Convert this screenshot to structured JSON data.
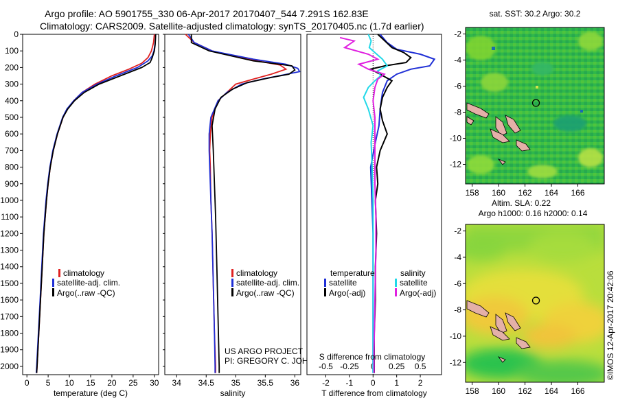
{
  "title_line1": "Argo profile: AO 5901755_330 06-Apr-2017 20170407_544 7.291S 162.83E",
  "title_line2": "Climatology: CARS2009. Satellite-adjusted climatology: synTS_20170405.nc (1.7d earlier)",
  "footer": {
    "project": "US ARGO PROJECT",
    "pi": "PI: GREGORY C. JOHNSON",
    "stamp": "©IMOS 12-Apr-2017 20:42:06"
  },
  "colors": {
    "climatology": "#e02020",
    "satellite": "#1f2fd6",
    "argo": "#000000",
    "satellite_diff": "#20d8e8",
    "argo_diff": "#e020e0"
  },
  "chart_data": [
    {
      "type": "line",
      "id": "temperature",
      "xlabel": "temperature (deg C)",
      "ylabel": "",
      "xlim": [
        -1,
        31
      ],
      "ylim": [
        2050,
        0
      ],
      "xticks": [
        0,
        5,
        10,
        15,
        20,
        25,
        30
      ],
      "yticks": [
        0,
        100,
        200,
        300,
        400,
        500,
        600,
        700,
        800,
        900,
        1000,
        1100,
        1200,
        1300,
        1400,
        1500,
        1600,
        1700,
        1800,
        1900,
        2000
      ],
      "legend": [
        "climatology",
        "satellite-adj. clim.",
        "Argo(..raw -QC)"
      ],
      "legend_position": "lower-center",
      "series": [
        {
          "name": "climatology",
          "color": "climatology",
          "points": [
            [
              30,
              0
            ],
            [
              29.8,
              50
            ],
            [
              29.3,
              100
            ],
            [
              28.5,
              140
            ],
            [
              27,
              175
            ],
            [
              24,
              210
            ],
            [
              20,
              250
            ],
            [
              16,
              300
            ],
            [
              13,
              350
            ],
            [
              11,
              400
            ],
            [
              9.5,
              450
            ],
            [
              8.5,
              500
            ],
            [
              7.2,
              600
            ],
            [
              6.2,
              700
            ],
            [
              5.5,
              800
            ],
            [
              5,
              900
            ],
            [
              4.6,
              1000
            ],
            [
              4,
              1200
            ],
            [
              3.6,
              1400
            ],
            [
              3.2,
              1600
            ],
            [
              2.8,
              1800
            ],
            [
              2.4,
              2000
            ],
            [
              2.3,
              2040
            ]
          ]
        },
        {
          "name": "satellite-adj. clim.",
          "color": "satellite",
          "points": [
            [
              30.3,
              0
            ],
            [
              30.2,
              50
            ],
            [
              29.9,
              100
            ],
            [
              29.5,
              130
            ],
            [
              28.5,
              160
            ],
            [
              26,
              200
            ],
            [
              21,
              250
            ],
            [
              16.5,
              300
            ],
            [
              13,
              350
            ],
            [
              11,
              400
            ],
            [
              9.4,
              450
            ],
            [
              8.4,
              500
            ],
            [
              7.1,
              600
            ],
            [
              6.1,
              700
            ],
            [
              5.4,
              800
            ],
            [
              4.9,
              900
            ],
            [
              4.5,
              1000
            ],
            [
              3.9,
              1200
            ],
            [
              3.5,
              1400
            ],
            [
              3.1,
              1600
            ],
            [
              2.7,
              1800
            ],
            [
              2.3,
              2000
            ],
            [
              2.2,
              2040
            ]
          ]
        },
        {
          "name": "Argo(..raw -QC)",
          "color": "argo",
          "points": [
            [
              30.3,
              0
            ],
            [
              30.2,
              60
            ],
            [
              30,
              100
            ],
            [
              29.5,
              140
            ],
            [
              29,
              170
            ],
            [
              27,
              200
            ],
            [
              22,
              250
            ],
            [
              17,
              300
            ],
            [
              13.5,
              350
            ],
            [
              11.2,
              400
            ],
            [
              9.6,
              450
            ],
            [
              8.5,
              500
            ],
            [
              7.2,
              600
            ],
            [
              6.2,
              700
            ],
            [
              5.5,
              800
            ],
            [
              5,
              900
            ],
            [
              4.6,
              1000
            ],
            [
              4,
              1200
            ],
            [
              3.6,
              1400
            ],
            [
              3.2,
              1600
            ],
            [
              2.8,
              1800
            ],
            [
              2.4,
              2000
            ],
            [
              2.3,
              2040
            ]
          ]
        }
      ]
    },
    {
      "type": "line",
      "id": "salinity",
      "xlabel": "salinity",
      "ylabel": "",
      "xlim": [
        33.8,
        36.1
      ],
      "ylim": [
        2050,
        0
      ],
      "xticks": [
        34,
        34.5,
        35,
        35.5,
        36
      ],
      "legend": [
        "climatology",
        "satellite-adj. clim.",
        "Argo(..raw -QC)"
      ],
      "legend_position": "lower-center",
      "series": [
        {
          "name": "climatology",
          "color": "climatology",
          "points": [
            [
              34.15,
              0
            ],
            [
              34.3,
              50
            ],
            [
              34.6,
              100
            ],
            [
              35.2,
              150
            ],
            [
              35.75,
              185
            ],
            [
              35.85,
              210
            ],
            [
              35.6,
              240
            ],
            [
              35.3,
              270
            ],
            [
              35.0,
              300
            ],
            [
              34.85,
              350
            ],
            [
              34.7,
              400
            ],
            [
              34.6,
              500
            ],
            [
              34.57,
              600
            ],
            [
              34.56,
              700
            ],
            [
              34.57,
              800
            ],
            [
              34.58,
              1000
            ],
            [
              34.6,
              1200
            ],
            [
              34.62,
              1500
            ],
            [
              34.64,
              1800
            ],
            [
              34.66,
              2000
            ],
            [
              34.66,
              2040
            ]
          ]
        },
        {
          "name": "satellite-adj. clim.",
          "color": "satellite",
          "points": [
            [
              34.2,
              0
            ],
            [
              34.3,
              50
            ],
            [
              34.6,
              100
            ],
            [
              35.3,
              150
            ],
            [
              35.85,
              180
            ],
            [
              36.05,
              205
            ],
            [
              36.08,
              225
            ],
            [
              35.8,
              245
            ],
            [
              35.45,
              270
            ],
            [
              35.1,
              300
            ],
            [
              34.85,
              350
            ],
            [
              34.7,
              400
            ],
            [
              34.58,
              500
            ],
            [
              34.55,
              600
            ],
            [
              34.55,
              700
            ],
            [
              34.56,
              800
            ],
            [
              34.58,
              1000
            ],
            [
              34.6,
              1200
            ],
            [
              34.62,
              1500
            ],
            [
              34.64,
              1800
            ],
            [
              34.65,
              2000
            ],
            [
              34.65,
              2040
            ]
          ]
        },
        {
          "name": "Argo(..raw -QC)",
          "color": "argo",
          "points": [
            [
              34.25,
              0
            ],
            [
              34.25,
              50
            ],
            [
              34.55,
              100
            ],
            [
              35.3,
              160
            ],
            [
              35.95,
              190
            ],
            [
              36,
              215
            ],
            [
              35.9,
              240
            ],
            [
              35.6,
              260
            ],
            [
              35.2,
              290
            ],
            [
              34.95,
              330
            ],
            [
              34.75,
              380
            ],
            [
              34.65,
              450
            ],
            [
              34.6,
              550
            ],
            [
              34.62,
              700
            ],
            [
              34.64,
              900
            ],
            [
              34.66,
              1100
            ],
            [
              34.68,
              1400
            ],
            [
              34.7,
              1700
            ],
            [
              34.72,
              2000
            ],
            [
              34.72,
              2040
            ]
          ]
        }
      ]
    },
    {
      "type": "line",
      "id": "differences",
      "xlabel": "T difference from climatology",
      "top_axis_label": "S difference from climatology",
      "xlim": [
        -2.8,
        2.9
      ],
      "ylim": [
        2050,
        0
      ],
      "xticks": [
        -2,
        -1,
        0,
        1,
        2
      ],
      "top_ticks": [
        [
          -0.5,
          "-0.5"
        ],
        [
          -0.25,
          "-0.25"
        ],
        [
          0,
          "0"
        ],
        [
          0.25,
          "0.25"
        ],
        [
          0.5,
          "0.5"
        ]
      ],
      "legend_temperature": {
        "title": "temperature",
        "items": [
          "satellite",
          "Argo(-adj)"
        ]
      },
      "legend_salinity": {
        "title": "salinity",
        "items": [
          "satellite",
          "Argo(-adj)"
        ]
      },
      "legend_position": "center",
      "series": [
        {
          "name": "satellite",
          "group": "temperature",
          "color": "satellite",
          "points": [
            [
              0.3,
              0
            ],
            [
              0.6,
              50
            ],
            [
              1,
              90
            ],
            [
              2,
              120
            ],
            [
              2.6,
              150
            ],
            [
              2.4,
              190
            ],
            [
              1.6,
              210
            ],
            [
              1,
              240
            ],
            [
              0.6,
              280
            ],
            [
              0.4,
              350
            ],
            [
              0.3,
              450
            ],
            [
              0.25,
              550
            ],
            [
              0.1,
              650
            ],
            [
              -0.1,
              800
            ],
            [
              -0.05,
              1000
            ],
            [
              0,
              1200
            ],
            [
              0,
              1500
            ],
            [
              0,
              1800
            ],
            [
              0,
              2000
            ],
            [
              0,
              2040
            ]
          ]
        },
        {
          "name": "Argo(-adj)",
          "group": "temperature",
          "color": "argo",
          "points": [
            [
              0.2,
              0
            ],
            [
              0.5,
              40
            ],
            [
              0.8,
              80
            ],
            [
              1.3,
              110
            ],
            [
              1.6,
              140
            ],
            [
              1.4,
              170
            ],
            [
              0.5,
              190
            ],
            [
              -0.1,
              210
            ],
            [
              0.3,
              240
            ],
            [
              0.8,
              280
            ],
            [
              0.6,
              320
            ],
            [
              0.4,
              380
            ],
            [
              0.3,
              450
            ],
            [
              0.4,
              520
            ],
            [
              0.6,
              600
            ],
            [
              0.3,
              700
            ],
            [
              0.15,
              800
            ],
            [
              0.2,
              900
            ],
            [
              0.1,
              1000
            ],
            [
              0.15,
              1200
            ],
            [
              0.1,
              1400
            ],
            [
              0.1,
              1600
            ],
            [
              0.05,
              1800
            ],
            [
              0.05,
              2000
            ],
            [
              0.05,
              2040
            ]
          ]
        },
        {
          "name": "satellite",
          "group": "salinity",
          "color": "satellite_diff",
          "points": [
            [
              -0.05,
              0
            ],
            [
              -0.02,
              40
            ],
            [
              -0.04,
              80
            ],
            [
              0.02,
              110
            ],
            [
              0.1,
              150
            ],
            [
              0.15,
              190
            ],
            [
              0.05,
              220
            ],
            [
              0.08,
              250
            ],
            [
              0.02,
              280
            ],
            [
              -0.05,
              320
            ],
            [
              -0.1,
              380
            ],
            [
              -0.05,
              450
            ],
            [
              0,
              550
            ],
            [
              -0.02,
              650
            ],
            [
              -0.01,
              800
            ],
            [
              0,
              1000
            ],
            [
              0,
              1200
            ],
            [
              0,
              1500
            ],
            [
              0,
              1800
            ],
            [
              0,
              2000
            ],
            [
              0,
              2040
            ]
          ]
        },
        {
          "name": "Argo(-adj)",
          "group": "salinity",
          "color": "argo_diff",
          "points": [
            [
              -0.35,
              20
            ],
            [
              -0.2,
              40
            ],
            [
              -0.3,
              80
            ],
            [
              -0.05,
              120
            ],
            [
              0.05,
              150
            ],
            [
              -0.15,
              180
            ],
            [
              -0.05,
              210
            ],
            [
              0.12,
              240
            ],
            [
              0.05,
              270
            ],
            [
              0.02,
              320
            ],
            [
              0,
              400
            ],
            [
              0.02,
              500
            ],
            [
              0.02,
              700
            ],
            [
              0.02,
              900
            ],
            [
              0.03,
              1100
            ],
            [
              0.03,
              1300
            ],
            [
              0.02,
              1600
            ],
            [
              0.01,
              1900
            ],
            [
              0.01,
              2040
            ]
          ]
        }
      ]
    },
    {
      "type": "heatmap",
      "id": "sst_map",
      "title": "sat. SST: 30.2 Argo: 30.2",
      "xlim": [
        157.5,
        168
      ],
      "ylim": [
        -13.5,
        -1.5
      ],
      "xticks": [
        158,
        160,
        162,
        164,
        166
      ],
      "yticks": [
        -2,
        -4,
        -6,
        -8,
        -10,
        -12
      ],
      "marker": {
        "lon": 162.83,
        "lat": -7.291
      }
    },
    {
      "type": "heatmap",
      "id": "sla_map",
      "title": "Altim. SLA: 0.22",
      "subtitle": "Argo h1000: 0.16 h2000: 0.14",
      "xlim": [
        157.5,
        168
      ],
      "ylim": [
        -13.5,
        -1.5
      ],
      "xticks": [
        158,
        160,
        162,
        164,
        166
      ],
      "yticks": [
        -2,
        -4,
        -6,
        -8,
        -10,
        -12
      ],
      "marker": {
        "lon": 162.83,
        "lat": -7.291
      }
    }
  ]
}
